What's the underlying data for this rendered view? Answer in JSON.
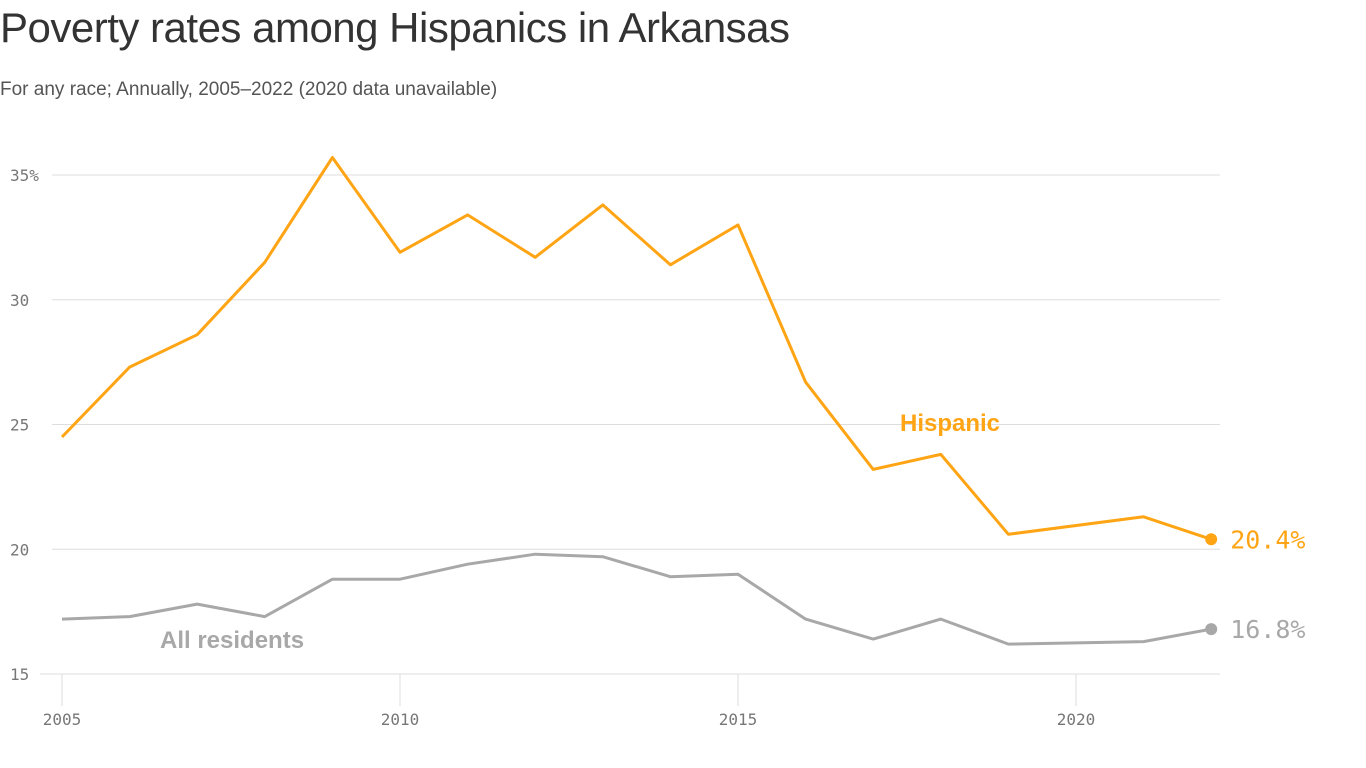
{
  "chart_data": {
    "type": "line",
    "title": "Poverty rates among Hispanics in Arkansas",
    "subtitle": "For any race; Annually, 2005–2022 (2020 data unavailable)",
    "xlabel": "",
    "ylabel": "",
    "xlim": [
      2005,
      2022
    ],
    "ylim": [
      15,
      36
    ],
    "x_ticks": [
      {
        "value": 2005,
        "label": "2005"
      },
      {
        "value": 2010,
        "label": "2010"
      },
      {
        "value": 2015,
        "label": "2015"
      },
      {
        "value": 2020,
        "label": "2020"
      }
    ],
    "y_ticks": [
      {
        "value": 15,
        "label": "15"
      },
      {
        "value": 20,
        "label": "20"
      },
      {
        "value": 25,
        "label": "25"
      },
      {
        "value": 30,
        "label": "30"
      },
      {
        "value": 35,
        "label": "35%"
      }
    ],
    "grid": true,
    "x": [
      2005,
      2006,
      2007,
      2008,
      2009,
      2010,
      2011,
      2012,
      2013,
      2014,
      2015,
      2016,
      2017,
      2018,
      2019,
      2021,
      2022
    ],
    "series": [
      {
        "name": "Hispanic",
        "color": "#FFA515",
        "values": [
          24.5,
          27.3,
          28.6,
          31.5,
          35.7,
          31.9,
          33.4,
          31.7,
          33.8,
          31.4,
          33.0,
          26.7,
          23.2,
          23.8,
          20.6,
          21.3,
          20.4
        ],
        "end_label": "20.4%"
      },
      {
        "name": "All residents",
        "color": "#A8A8A8",
        "values": [
          17.2,
          17.3,
          17.8,
          17.3,
          18.8,
          18.8,
          19.4,
          19.8,
          19.7,
          18.9,
          19.0,
          17.2,
          16.4,
          17.2,
          16.2,
          16.3,
          16.8
        ],
        "end_label": "16.8%"
      }
    ]
  }
}
